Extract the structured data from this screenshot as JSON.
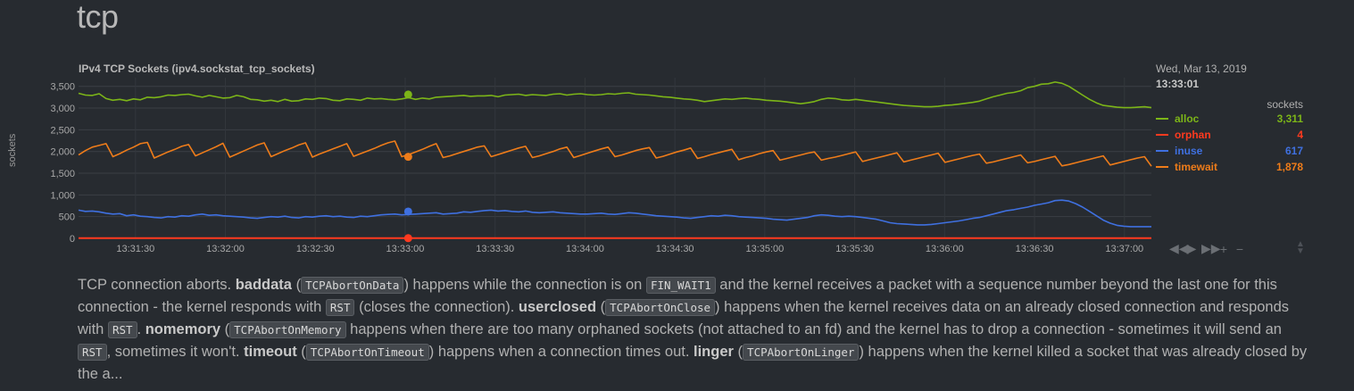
{
  "section": {
    "title": "tcp"
  },
  "chart": {
    "title": "IPv4 TCP Sockets (ipv4.sockstat_tcp_sockets)",
    "ylabel": "sockets",
    "legend": {
      "date": "Wed, Mar 13, 2019",
      "time": "13:33:01",
      "units": "sockets",
      "items": [
        {
          "name": "alloc",
          "value": "3,311",
          "color": "#7cb518"
        },
        {
          "name": "orphan",
          "value": "4",
          "color": "#ff3a1f"
        },
        {
          "name": "inuse",
          "value": "617",
          "color": "#3f70e0"
        },
        {
          "name": "timewait",
          "value": "1,878",
          "color": "#ee7c1a"
        }
      ]
    },
    "toolbar": [
      "◀◀",
      "▶",
      "▶▶",
      "+",
      "−"
    ]
  },
  "chart_data": {
    "type": "line",
    "x_tick_labels": [
      "13:31:30",
      "13:32:00",
      "13:32:30",
      "13:33:00",
      "13:33:30",
      "13:34:00",
      "13:34:30",
      "13:35:00",
      "13:35:30",
      "13:36:00",
      "13:36:30",
      "13:37:00"
    ],
    "y_tick_labels": [
      "0",
      "500",
      "1,000",
      "1,500",
      "2,000",
      "2,500",
      "3,000",
      "3,500"
    ],
    "ylim": [
      0,
      3700
    ],
    "xlim": [
      "13:31:11",
      "13:37:09"
    ],
    "grid": true,
    "highlight_time": "13:33:01",
    "series": [
      {
        "name": "alloc",
        "color": "#7cb518",
        "values": [
          3340,
          3300,
          3290,
          3330,
          3220,
          3180,
          3200,
          3170,
          3210,
          3190,
          3250,
          3240,
          3260,
          3300,
          3290,
          3310,
          3320,
          3280,
          3250,
          3290,
          3260,
          3230,
          3240,
          3290,
          3260,
          3200,
          3190,
          3160,
          3180,
          3150,
          3200,
          3160,
          3170,
          3210,
          3200,
          3230,
          3220,
          3180,
          3170,
          3210,
          3200,
          3180,
          3230,
          3210,
          3220,
          3200,
          3190,
          3210,
          3240,
          3200,
          3230,
          3210,
          3250,
          3260,
          3270,
          3280,
          3290,
          3270,
          3280,
          3280,
          3290,
          3260,
          3300,
          3310,
          3320,
          3290,
          3310,
          3300,
          3290,
          3320,
          3330,
          3300,
          3320,
          3330,
          3310,
          3300,
          3310,
          3330,
          3320,
          3340,
          3350,
          3320,
          3310,
          3300,
          3280,
          3260,
          3250,
          3230,
          3210,
          3200,
          3180,
          3150,
          3170,
          3190,
          3210,
          3200,
          3220,
          3230,
          3210,
          3200,
          3180,
          3170,
          3160,
          3140,
          3120,
          3100,
          3120,
          3150,
          3200,
          3230,
          3220,
          3190,
          3180,
          3200,
          3180,
          3160,
          3140,
          3120,
          3100,
          3080,
          3060,
          3050,
          3040,
          3030,
          3030,
          3040,
          3060,
          3070,
          3090,
          3110,
          3130,
          3160,
          3210,
          3260,
          3300,
          3340,
          3360,
          3400,
          3470,
          3500,
          3550,
          3560,
          3600,
          3570,
          3500,
          3400,
          3300,
          3200,
          3120,
          3060,
          3040,
          3020,
          3010,
          3010,
          3020,
          3030,
          3010
        ]
      },
      {
        "name": "timewait",
        "color": "#ee7c1a",
        "values": [
          1920,
          2020,
          2100,
          2140,
          2180,
          1880,
          1950,
          2030,
          2100,
          2180,
          2210,
          1850,
          1920,
          1990,
          2050,
          2120,
          2160,
          1900,
          1970,
          2040,
          2110,
          2190,
          1870,
          1940,
          2010,
          2080,
          2150,
          2200,
          1880,
          1950,
          2020,
          2080,
          2150,
          2200,
          1870,
          1940,
          2000,
          2060,
          2120,
          2180,
          1890,
          1950,
          2010,
          2070,
          2140,
          2200,
          2240,
          1880,
          1930,
          1990,
          2050,
          2120,
          2180,
          1860,
          1900,
          1950,
          2000,
          2050,
          2100,
          2130,
          1880,
          1930,
          1980,
          2030,
          2080,
          2120,
          1860,
          1900,
          1950,
          2000,
          2060,
          2100,
          1860,
          1910,
          1960,
          2010,
          2060,
          2100,
          1880,
          1920,
          1970,
          2020,
          2060,
          2090,
          1850,
          1890,
          1940,
          1990,
          2030,
          2080,
          1840,
          1880,
          1930,
          1970,
          2010,
          2050,
          1810,
          1860,
          1900,
          1950,
          1990,
          2020,
          1800,
          1840,
          1880,
          1920,
          1960,
          1990,
          1800,
          1840,
          1870,
          1910,
          1950,
          1990,
          1770,
          1810,
          1850,
          1890,
          1930,
          1970,
          1760,
          1800,
          1840,
          1880,
          1920,
          1960,
          1750,
          1790,
          1830,
          1870,
          1910,
          1940,
          1730,
          1760,
          1800,
          1840,
          1880,
          1920,
          1740,
          1770,
          1810,
          1850,
          1890,
          1670,
          1700,
          1740,
          1780,
          1820,
          1860,
          1900,
          1690,
          1730,
          1770,
          1810,
          1850,
          1880,
          1660
        ]
      },
      {
        "name": "inuse",
        "color": "#3f70e0",
        "values": [
          650,
          620,
          630,
          610,
          580,
          560,
          570,
          520,
          540,
          510,
          500,
          480,
          470,
          500,
          490,
          520,
          510,
          540,
          560,
          530,
          540,
          520,
          510,
          500,
          490,
          470,
          460,
          480,
          500,
          490,
          510,
          480,
          470,
          500,
          490,
          510,
          520,
          500,
          510,
          490,
          480,
          510,
          500,
          520,
          540,
          550,
          560,
          540,
          550,
          560,
          570,
          580,
          590,
          560,
          570,
          580,
          610,
          600,
          620,
          640,
          650,
          630,
          640,
          620,
          610,
          630,
          600,
          590,
          600,
          610,
          590,
          580,
          570,
          560,
          560,
          570,
          580,
          560,
          550,
          570,
          590,
          580,
          560,
          540,
          520,
          510,
          500,
          490,
          470,
          460,
          480,
          500,
          520,
          510,
          530,
          520,
          500,
          490,
          480,
          470,
          460,
          440,
          430,
          420,
          440,
          460,
          480,
          520,
          540,
          530,
          510,
          500,
          510,
          500,
          480,
          460,
          440,
          400,
          360,
          340,
          330,
          320,
          310,
          310,
          320,
          340,
          360,
          380,
          400,
          430,
          460,
          480,
          520,
          560,
          600,
          640,
          660,
          690,
          720,
          760,
          790,
          820,
          870,
          880,
          860,
          800,
          720,
          620,
          520,
          420,
          350,
          300,
          280,
          270,
          270,
          270,
          270
        ]
      },
      {
        "name": "orphan",
        "color": "#ff3a1f",
        "values": [
          4,
          4,
          4,
          4,
          4,
          4,
          4,
          4,
          4,
          4,
          4,
          4,
          4,
          4,
          4,
          4,
          4,
          4,
          4,
          4,
          4,
          4,
          4,
          4,
          4,
          4,
          4,
          4,
          4,
          4,
          4,
          4,
          4,
          4,
          4,
          4,
          4,
          4,
          4,
          4,
          4,
          4,
          4,
          4,
          4,
          4,
          4,
          4,
          4,
          4,
          4,
          4,
          4,
          4,
          4,
          4,
          4,
          4,
          4,
          4,
          4,
          4,
          4,
          4,
          4,
          4,
          4,
          4,
          4,
          4,
          4,
          4,
          4,
          4,
          4,
          4,
          4,
          4,
          4,
          4,
          4,
          4,
          4,
          4,
          4,
          4,
          4,
          4,
          4,
          4,
          4,
          4,
          4,
          4,
          4,
          4,
          4,
          4,
          4,
          4,
          4,
          4,
          4,
          4,
          4,
          4,
          4,
          4,
          4,
          4,
          4,
          4,
          4,
          4,
          4,
          4,
          4,
          4,
          4,
          4,
          4,
          4,
          4,
          4,
          4,
          4,
          4,
          4,
          4,
          4,
          4,
          4,
          4,
          4,
          4,
          4,
          4,
          4,
          4,
          4,
          4,
          4,
          4,
          4,
          4,
          4,
          4,
          4,
          4,
          4,
          4,
          4,
          4,
          4,
          4,
          4,
          4,
          4,
          4,
          4
        ]
      }
    ],
    "highlight_values": {
      "alloc": 3311,
      "orphan": 4,
      "inuse": 617,
      "timewait": 1878
    }
  },
  "description": {
    "segments": [
      {
        "t": "text",
        "v": "TCP connection aborts. "
      },
      {
        "t": "bold",
        "v": "baddata"
      },
      {
        "t": "text",
        "v": " ("
      },
      {
        "t": "code",
        "v": "TCPAbortOnData"
      },
      {
        "t": "text",
        "v": ") happens while the connection is on "
      },
      {
        "t": "code",
        "v": "FIN_WAIT1"
      },
      {
        "t": "text",
        "v": " and the kernel receives a packet with a sequence number beyond the last one for this connection - the kernel responds with "
      },
      {
        "t": "code",
        "v": "RST"
      },
      {
        "t": "text",
        "v": " (closes the connection). "
      },
      {
        "t": "bold",
        "v": "userclosed"
      },
      {
        "t": "text",
        "v": " ("
      },
      {
        "t": "code",
        "v": "TCPAbortOnClose"
      },
      {
        "t": "text",
        "v": ") happens when the kernel receives data on an already closed connection and responds with "
      },
      {
        "t": "code",
        "v": "RST"
      },
      {
        "t": "text",
        "v": ". "
      },
      {
        "t": "bold",
        "v": "nomemory"
      },
      {
        "t": "text",
        "v": " ("
      },
      {
        "t": "code",
        "v": "TCPAbortOnMemory"
      },
      {
        "t": "text",
        "v": " happens when there are too many orphaned sockets (not attached to an fd) and the kernel has to drop a connection - sometimes it will send an "
      },
      {
        "t": "code",
        "v": "RST"
      },
      {
        "t": "text",
        "v": ", sometimes it won't. "
      },
      {
        "t": "bold",
        "v": "timeout"
      },
      {
        "t": "text",
        "v": " ("
      },
      {
        "t": "code",
        "v": "TCPAbortOnTimeout"
      },
      {
        "t": "text",
        "v": ") happens when a connection times out. "
      },
      {
        "t": "bold",
        "v": "linger"
      },
      {
        "t": "text",
        "v": " ("
      },
      {
        "t": "code",
        "v": "TCPAbortOnLinger"
      },
      {
        "t": "text",
        "v": ") happens when the kernel killed a socket that was already closed by the a..."
      }
    ]
  }
}
